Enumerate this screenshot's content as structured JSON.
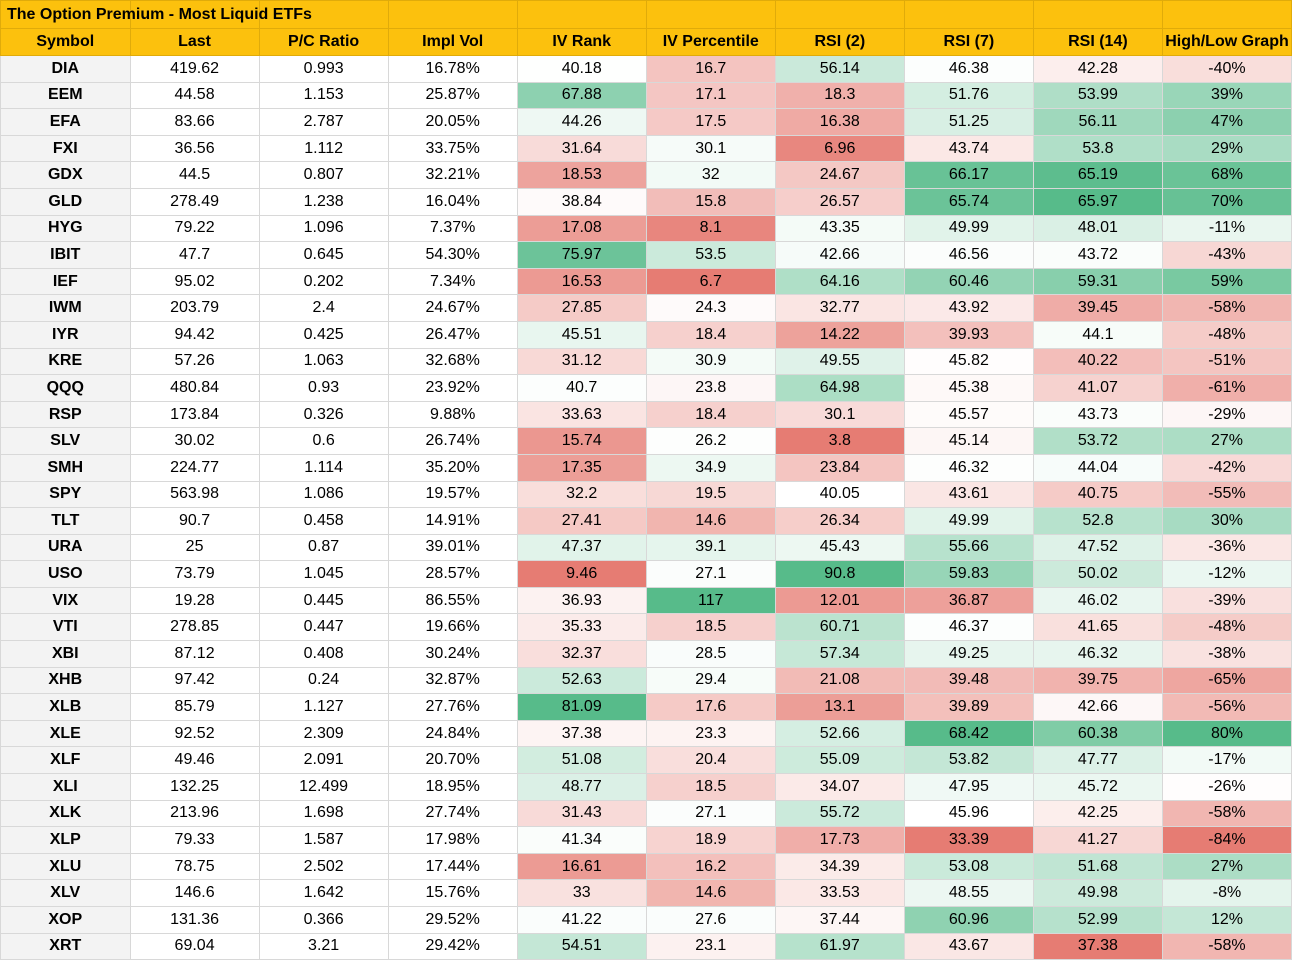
{
  "title": "The Option Premium - Most Liquid ETFs",
  "columns": [
    "Symbol",
    "Last",
    "P/C Ratio",
    "Impl Vol",
    "IV Rank",
    "IV Percentile",
    "RSI (2)",
    "RSI (7)",
    "RSI (14)",
    "High/Low Graph"
  ],
  "rows": [
    [
      "DIA",
      "419.62",
      "0.993",
      "16.78%",
      "40.18",
      "16.7",
      "56.14",
      "46.38",
      "42.28",
      "-40%"
    ],
    [
      "EEM",
      "44.58",
      "1.153",
      "25.87%",
      "67.88",
      "17.1",
      "18.3",
      "51.76",
      "53.99",
      "39%"
    ],
    [
      "EFA",
      "83.66",
      "2.787",
      "20.05%",
      "44.26",
      "17.5",
      "16.38",
      "51.25",
      "56.11",
      "47%"
    ],
    [
      "FXI",
      "36.56",
      "1.112",
      "33.75%",
      "31.64",
      "30.1",
      "6.96",
      "43.74",
      "53.8",
      "29%"
    ],
    [
      "GDX",
      "44.5",
      "0.807",
      "32.21%",
      "18.53",
      "32",
      "24.67",
      "66.17",
      "65.19",
      "68%"
    ],
    [
      "GLD",
      "278.49",
      "1.238",
      "16.04%",
      "38.84",
      "15.8",
      "26.57",
      "65.74",
      "65.97",
      "70%"
    ],
    [
      "HYG",
      "79.22",
      "1.096",
      "7.37%",
      "17.08",
      "8.1",
      "43.35",
      "49.99",
      "48.01",
      "-11%"
    ],
    [
      "IBIT",
      "47.7",
      "0.645",
      "54.30%",
      "75.97",
      "53.5",
      "42.66",
      "46.56",
      "43.72",
      "-43%"
    ],
    [
      "IEF",
      "95.02",
      "0.202",
      "7.34%",
      "16.53",
      "6.7",
      "64.16",
      "60.46",
      "59.31",
      "59%"
    ],
    [
      "IWM",
      "203.79",
      "2.4",
      "24.67%",
      "27.85",
      "24.3",
      "32.77",
      "43.92",
      "39.45",
      "-58%"
    ],
    [
      "IYR",
      "94.42",
      "0.425",
      "26.47%",
      "45.51",
      "18.4",
      "14.22",
      "39.93",
      "44.1",
      "-48%"
    ],
    [
      "KRE",
      "57.26",
      "1.063",
      "32.68%",
      "31.12",
      "30.9",
      "49.55",
      "45.82",
      "40.22",
      "-51%"
    ],
    [
      "QQQ",
      "480.84",
      "0.93",
      "23.92%",
      "40.7",
      "23.8",
      "64.98",
      "45.38",
      "41.07",
      "-61%"
    ],
    [
      "RSP",
      "173.84",
      "0.326",
      "9.88%",
      "33.63",
      "18.4",
      "30.1",
      "45.57",
      "43.73",
      "-29%"
    ],
    [
      "SLV",
      "30.02",
      "0.6",
      "26.74%",
      "15.74",
      "26.2",
      "3.8",
      "45.14",
      "53.72",
      "27%"
    ],
    [
      "SMH",
      "224.77",
      "1.114",
      "35.20%",
      "17.35",
      "34.9",
      "23.84",
      "46.32",
      "44.04",
      "-42%"
    ],
    [
      "SPY",
      "563.98",
      "1.086",
      "19.57%",
      "32.2",
      "19.5",
      "40.05",
      "43.61",
      "40.75",
      "-55%"
    ],
    [
      "TLT",
      "90.7",
      "0.458",
      "14.91%",
      "27.41",
      "14.6",
      "26.34",
      "49.99",
      "52.8",
      "30%"
    ],
    [
      "URA",
      "25",
      "0.87",
      "39.01%",
      "47.37",
      "39.1",
      "45.43",
      "55.66",
      "47.52",
      "-36%"
    ],
    [
      "USO",
      "73.79",
      "1.045",
      "28.57%",
      "9.46",
      "27.1",
      "90.8",
      "59.83",
      "50.02",
      "-12%"
    ],
    [
      "VIX",
      "19.28",
      "0.445",
      "86.55%",
      "36.93",
      "117",
      "12.01",
      "36.87",
      "46.02",
      "-39%"
    ],
    [
      "VTI",
      "278.85",
      "0.447",
      "19.66%",
      "35.33",
      "18.5",
      "60.71",
      "46.37",
      "41.65",
      "-48%"
    ],
    [
      "XBI",
      "87.12",
      "0.408",
      "30.24%",
      "32.37",
      "28.5",
      "57.34",
      "49.25",
      "46.32",
      "-38%"
    ],
    [
      "XHB",
      "97.42",
      "0.24",
      "32.87%",
      "52.63",
      "29.4",
      "21.08",
      "39.48",
      "39.75",
      "-65%"
    ],
    [
      "XLB",
      "85.79",
      "1.127",
      "27.76%",
      "81.09",
      "17.6",
      "13.1",
      "39.89",
      "42.66",
      "-56%"
    ],
    [
      "XLE",
      "92.52",
      "2.309",
      "24.84%",
      "37.38",
      "23.3",
      "52.66",
      "68.42",
      "60.38",
      "80%"
    ],
    [
      "XLF",
      "49.46",
      "2.091",
      "20.70%",
      "51.08",
      "20.4",
      "55.09",
      "53.82",
      "47.77",
      "-17%"
    ],
    [
      "XLI",
      "132.25",
      "12.499",
      "18.95%",
      "48.77",
      "18.5",
      "34.07",
      "47.95",
      "45.72",
      "-26%"
    ],
    [
      "XLK",
      "213.96",
      "1.698",
      "27.74%",
      "31.43",
      "27.1",
      "55.72",
      "45.96",
      "42.25",
      "-58%"
    ],
    [
      "XLP",
      "79.33",
      "1.587",
      "17.98%",
      "41.34",
      "18.9",
      "17.73",
      "33.39",
      "41.27",
      "-84%"
    ],
    [
      "XLU",
      "78.75",
      "2.502",
      "17.44%",
      "16.61",
      "16.2",
      "34.39",
      "53.08",
      "51.68",
      "27%"
    ],
    [
      "XLV",
      "146.6",
      "1.642",
      "15.76%",
      "33",
      "14.6",
      "33.53",
      "48.55",
      "49.98",
      "-8%"
    ],
    [
      "XOP",
      "131.36",
      "0.366",
      "29.52%",
      "41.22",
      "27.6",
      "37.44",
      "60.96",
      "52.99",
      "12%"
    ],
    [
      "XRT",
      "69.04",
      "3.21",
      "29.42%",
      "54.51",
      "23.1",
      "61.97",
      "43.67",
      "37.38",
      "-58%"
    ]
  ],
  "colors": {
    "header": "#fcc10d",
    "symbol_cell": "#f3f3f3",
    "scale_low": "#e67c73",
    "scale_mid": "#ffffff",
    "scale_high": "#57bb8a"
  },
  "color_scale": {
    "colored_columns": [
      4,
      5,
      6,
      7,
      8,
      9
    ],
    "midpoint": {
      "4": 40,
      "5": 25,
      "6": 40,
      "7": 46,
      "8": 43,
      "9": -25
    }
  }
}
